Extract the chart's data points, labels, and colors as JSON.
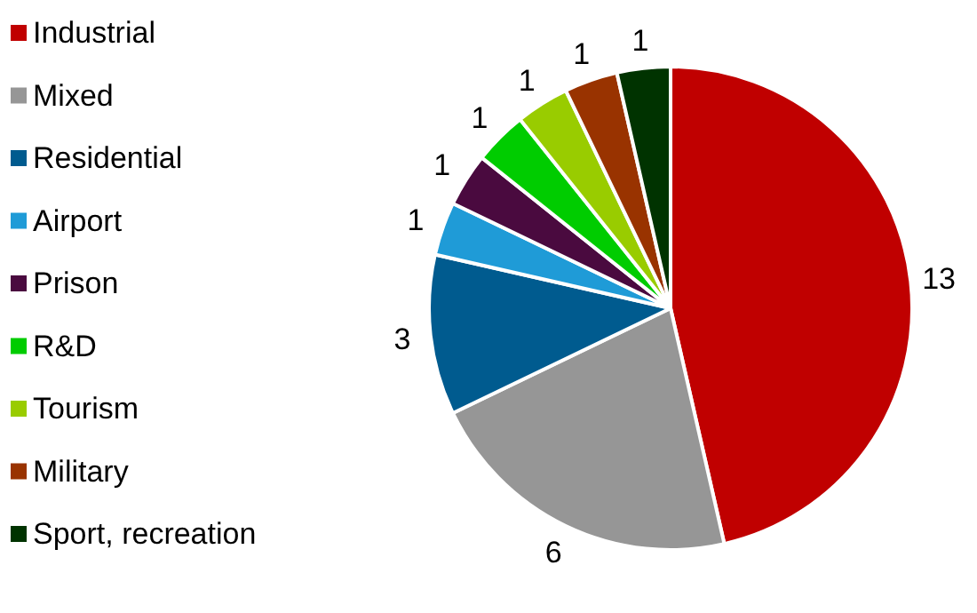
{
  "chart_data": {
    "type": "pie",
    "categories": [
      "Industrial",
      "Mixed",
      "Residential",
      "Airport",
      "Prison",
      "R&D",
      "Tourism",
      "Military",
      "Sport, recreation"
    ],
    "values": [
      13,
      6,
      3,
      1,
      1,
      1,
      1,
      1,
      1
    ],
    "colors": [
      "#c00000",
      "#969696",
      "#005b8f",
      "#1f9bd7",
      "#4a0a3f",
      "#00cc00",
      "#99cc00",
      "#993300",
      "#003300"
    ],
    "data_labels": true,
    "legend": "left"
  }
}
